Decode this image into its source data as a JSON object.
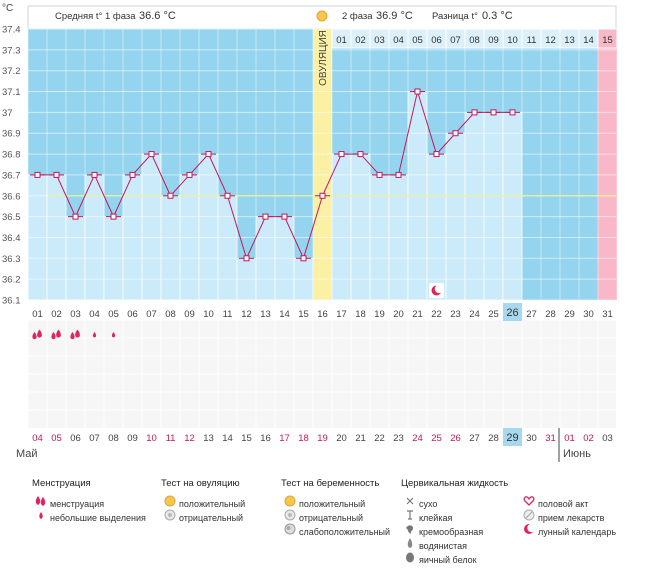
{
  "header": {
    "unit": "°C",
    "phase1_label": "Средняя t° 1 фаза",
    "phase1_value": "36.6 °C",
    "phase2_label": "2 фаза",
    "phase2_value": "36.9 °C",
    "diff_label": "Разница t°",
    "diff_value": "0.3 °C"
  },
  "ovulation_label": "ОВУЛЯЦИЯ",
  "chart_data": {
    "type": "line",
    "title": "",
    "xlabel": "",
    "ylabel": "°C",
    "ylim": [
      36.1,
      37.4
    ],
    "y_ticks": [
      "36.1",
      "36.2",
      "36.3",
      "36.4",
      "36.5",
      "36.6",
      "36.7",
      "36.8",
      "36.9",
      "37",
      "37.1",
      "37.2",
      "37.3",
      "37.4"
    ],
    "cycle_days": [
      "01",
      "02",
      "03",
      "04",
      "05",
      "06",
      "07",
      "08",
      "09",
      "10",
      "11",
      "12",
      "13",
      "14",
      "15",
      "16",
      "17",
      "18",
      "19",
      "20",
      "21",
      "22",
      "23",
      "24",
      "25",
      "26",
      "27",
      "28",
      "29",
      "30",
      "31"
    ],
    "phase2_days": [
      "01",
      "02",
      "03",
      "04",
      "05",
      "06",
      "07",
      "08",
      "09",
      "10",
      "11",
      "12",
      "13",
      "14",
      "15"
    ],
    "series": [
      {
        "values": [
          36.7,
          36.7,
          36.5,
          36.7,
          36.5,
          36.7,
          36.8,
          36.6,
          36.7,
          36.8,
          36.6,
          36.3,
          36.5,
          36.5,
          36.3,
          36.6,
          36.8,
          36.8,
          36.7,
          36.7,
          37.1,
          36.8,
          36.9,
          37.0,
          37.0,
          37.0,
          null,
          null,
          null,
          null,
          null
        ]
      }
    ],
    "coverline": 36.6,
    "ovulation_day": 16,
    "current_day": 26,
    "last_day": 31,
    "lunar_icon_day": 22,
    "menstruation_days": [
      1,
      2,
      3
    ],
    "light_discharge_days": [
      4,
      5
    ],
    "calendar_dates": [
      "04",
      "05",
      "06",
      "07",
      "08",
      "09",
      "10",
      "11",
      "12",
      "13",
      "14",
      "15",
      "16",
      "17",
      "18",
      "19",
      "20",
      "21",
      "22",
      "23",
      "24",
      "25",
      "26",
      "27",
      "28",
      "29",
      "30",
      "31",
      "01",
      "02",
      "03"
    ],
    "weekend_days": [
      1,
      7,
      8,
      14,
      15,
      21,
      22,
      28,
      29
    ],
    "month_labels": {
      "may": "Май",
      "june": "Июнь"
    },
    "colors": {
      "bg_cyan": "#94d4ef",
      "light_blue": "#cbebfb",
      "line": "#c2185b",
      "ovulation": "#fbf0a4",
      "end_pink": "#f9b8c8",
      "today": "#a8d8ee",
      "coverline": "#e9f09e"
    }
  },
  "legend": {
    "groups": [
      {
        "title": "Менструация",
        "items": [
          {
            "icon": "menstruation-icon",
            "label": "менструация"
          },
          {
            "icon": "light-discharge-icon",
            "label": "небольшие выделения"
          }
        ]
      },
      {
        "title": "Тест на овуляцию",
        "items": [
          {
            "icon": "positive-test-icon",
            "label": "положительный"
          },
          {
            "icon": "negative-test-icon",
            "label": "отрицательный"
          }
        ]
      },
      {
        "title": "Тест на беременность",
        "items": [
          {
            "icon": "positive-test-icon",
            "label": "положительный"
          },
          {
            "icon": "negative-test-icon",
            "label": "отрицательный"
          },
          {
            "icon": "weak-positive-test-icon",
            "label": "слабоположительный"
          }
        ]
      },
      {
        "title": "Цервикальная жидкость",
        "items": [
          {
            "icon": "dry-icon",
            "label": "сухо"
          },
          {
            "icon": "sticky-icon",
            "label": "клейкая"
          },
          {
            "icon": "creamy-icon",
            "label": "кремообразная"
          },
          {
            "icon": "watery-icon",
            "label": "водянистая"
          },
          {
            "icon": "egg-white-icon",
            "label": "яичный белок"
          }
        ]
      },
      {
        "title": "",
        "items": [
          {
            "icon": "heart-icon",
            "label": "половой акт"
          },
          {
            "icon": "pill-icon",
            "label": "прием лекарств"
          },
          {
            "icon": "moon-icon",
            "label": "лунный календарь"
          }
        ]
      }
    ]
  }
}
